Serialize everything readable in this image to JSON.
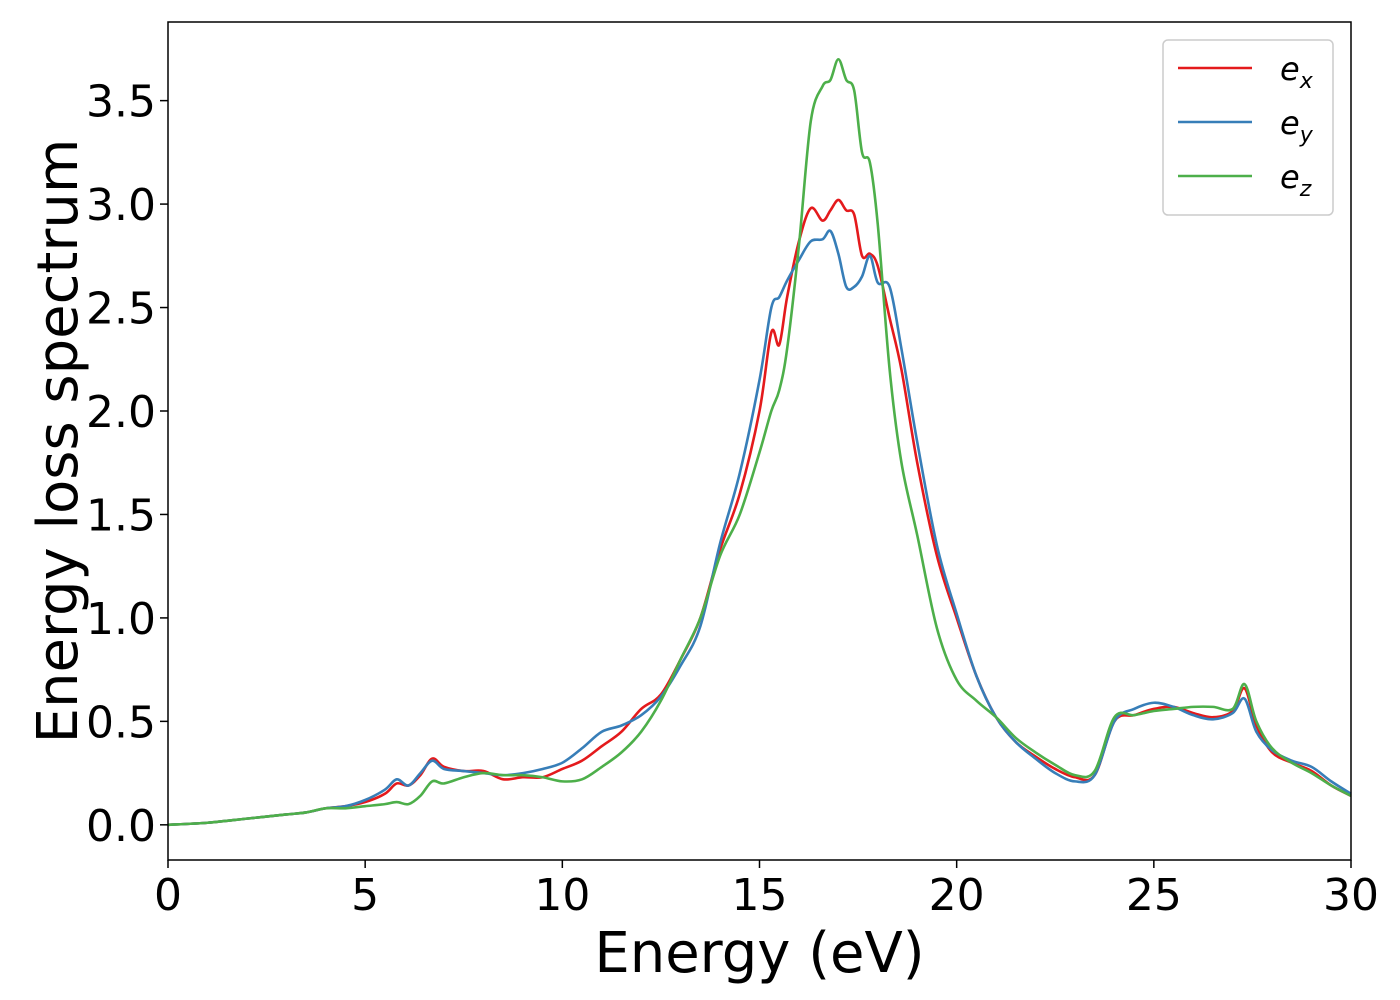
{
  "chart_data": {
    "type": "line",
    "title": "",
    "xlabel": "Energy (eV)",
    "ylabel": "Energy loss spectrum",
    "xlim": [
      0,
      30
    ],
    "ylim": [
      -0.17,
      3.88
    ],
    "xticks": [
      0,
      5,
      10,
      15,
      20,
      25,
      30
    ],
    "xtick_labels": [
      "0",
      "5",
      "10",
      "15",
      "20",
      "25",
      "30"
    ],
    "yticks": [
      0.0,
      0.5,
      1.0,
      1.5,
      2.0,
      2.5,
      3.0,
      3.5
    ],
    "ytick_labels": [
      "0.0",
      "0.5",
      "1.0",
      "1.5",
      "2.0",
      "2.5",
      "3.0",
      "3.5"
    ],
    "grid": false,
    "legend_position": "top-right",
    "series": [
      {
        "name": "e",
        "subscript": "x",
        "color": "#e41a1c",
        "x": [
          0,
          1,
          2,
          3,
          3.5,
          4,
          4.5,
          5,
          5.5,
          5.8,
          6.1,
          6.4,
          6.7,
          7,
          7.5,
          8,
          8.5,
          9,
          9.5,
          10,
          10.5,
          11,
          11.5,
          12,
          12.5,
          13,
          13.5,
          14,
          14.5,
          15,
          15.3,
          15.5,
          15.7,
          16,
          16.3,
          16.6,
          16.8,
          17,
          17.2,
          17.4,
          17.6,
          17.8,
          18,
          18.3,
          18.6,
          19,
          19.5,
          20,
          20.5,
          21,
          21.5,
          22,
          22.5,
          23,
          23.5,
          24,
          24.5,
          25,
          25.5,
          26,
          26.5,
          27,
          27.3,
          27.6,
          28,
          28.5,
          29,
          29.5,
          30
        ],
        "y": [
          0,
          0.01,
          0.03,
          0.05,
          0.06,
          0.08,
          0.09,
          0.11,
          0.15,
          0.2,
          0.19,
          0.24,
          0.32,
          0.28,
          0.26,
          0.26,
          0.22,
          0.23,
          0.23,
          0.27,
          0.31,
          0.38,
          0.45,
          0.56,
          0.63,
          0.8,
          1.0,
          1.33,
          1.6,
          2.0,
          2.38,
          2.32,
          2.55,
          2.82,
          2.98,
          2.92,
          2.97,
          3.02,
          2.97,
          2.95,
          2.75,
          2.76,
          2.7,
          2.45,
          2.2,
          1.75,
          1.3,
          1.0,
          0.72,
          0.52,
          0.4,
          0.33,
          0.27,
          0.23,
          0.24,
          0.5,
          0.53,
          0.56,
          0.57,
          0.54,
          0.52,
          0.55,
          0.66,
          0.48,
          0.35,
          0.3,
          0.26,
          0.19,
          0.14
        ]
      },
      {
        "name": "e",
        "subscript": "y",
        "color": "#377eb8",
        "x": [
          0,
          1,
          2,
          3,
          3.5,
          4,
          4.5,
          5,
          5.5,
          5.8,
          6.1,
          6.4,
          6.7,
          7,
          7.5,
          8,
          8.5,
          9,
          9.5,
          10,
          10.5,
          11,
          11.5,
          12,
          12.5,
          13,
          13.5,
          14,
          14.5,
          15,
          15.3,
          15.5,
          15.7,
          16,
          16.3,
          16.6,
          16.8,
          17,
          17.2,
          17.4,
          17.6,
          17.8,
          18,
          18.3,
          18.6,
          19,
          19.5,
          20,
          20.5,
          21,
          21.5,
          22,
          22.5,
          23,
          23.5,
          24,
          24.5,
          25,
          25.5,
          26,
          26.5,
          27,
          27.3,
          27.6,
          28,
          28.5,
          29,
          29.5,
          30
        ],
        "y": [
          0,
          0.01,
          0.03,
          0.05,
          0.06,
          0.08,
          0.09,
          0.12,
          0.17,
          0.22,
          0.19,
          0.25,
          0.31,
          0.27,
          0.26,
          0.25,
          0.24,
          0.25,
          0.27,
          0.3,
          0.37,
          0.45,
          0.48,
          0.53,
          0.62,
          0.77,
          0.96,
          1.36,
          1.7,
          2.15,
          2.5,
          2.55,
          2.63,
          2.73,
          2.82,
          2.83,
          2.87,
          2.76,
          2.6,
          2.6,
          2.65,
          2.75,
          2.62,
          2.6,
          2.3,
          1.85,
          1.35,
          1.02,
          0.72,
          0.52,
          0.4,
          0.32,
          0.25,
          0.21,
          0.24,
          0.5,
          0.56,
          0.59,
          0.57,
          0.53,
          0.51,
          0.54,
          0.61,
          0.45,
          0.36,
          0.31,
          0.28,
          0.21,
          0.15
        ]
      },
      {
        "name": "e",
        "subscript": "z",
        "color": "#4daf4a",
        "x": [
          0,
          1,
          2,
          3,
          3.5,
          4,
          4.5,
          5,
          5.5,
          5.8,
          6.1,
          6.4,
          6.7,
          7,
          7.5,
          8,
          8.5,
          9,
          9.5,
          10,
          10.5,
          11,
          11.5,
          12,
          12.5,
          13,
          13.5,
          14,
          14.5,
          15,
          15.3,
          15.5,
          15.7,
          16,
          16.3,
          16.6,
          16.8,
          17,
          17.2,
          17.4,
          17.6,
          17.8,
          18,
          18.3,
          18.6,
          19,
          19.5,
          20,
          20.5,
          21,
          21.5,
          22,
          22.5,
          23,
          23.5,
          24,
          24.5,
          25,
          25.5,
          26,
          26.5,
          27,
          27.3,
          27.6,
          28,
          28.5,
          29,
          29.5,
          30
        ],
        "y": [
          0,
          0.01,
          0.03,
          0.05,
          0.06,
          0.08,
          0.08,
          0.09,
          0.1,
          0.11,
          0.1,
          0.14,
          0.21,
          0.2,
          0.23,
          0.25,
          0.24,
          0.24,
          0.23,
          0.21,
          0.22,
          0.28,
          0.35,
          0.45,
          0.6,
          0.8,
          1.0,
          1.3,
          1.5,
          1.8,
          2.0,
          2.1,
          2.3,
          2.8,
          3.4,
          3.57,
          3.6,
          3.7,
          3.6,
          3.55,
          3.25,
          3.2,
          2.9,
          2.2,
          1.75,
          1.4,
          0.95,
          0.7,
          0.6,
          0.52,
          0.42,
          0.35,
          0.29,
          0.24,
          0.26,
          0.52,
          0.53,
          0.55,
          0.56,
          0.57,
          0.57,
          0.56,
          0.68,
          0.5,
          0.37,
          0.3,
          0.25,
          0.19,
          0.14
        ]
      }
    ]
  }
}
